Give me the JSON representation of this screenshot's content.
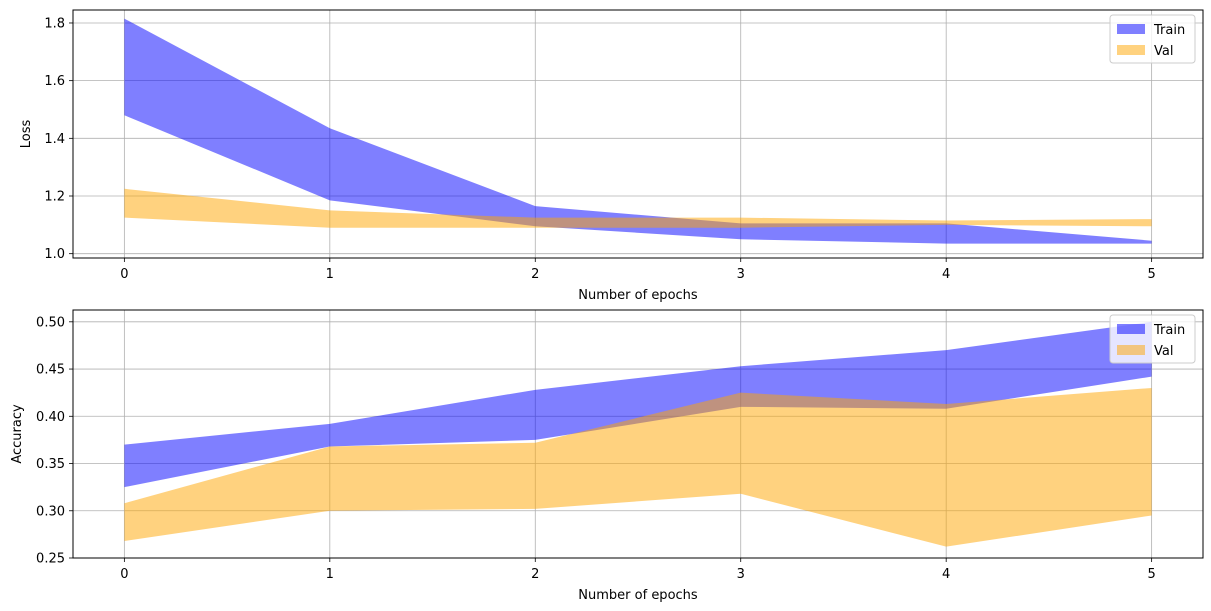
{
  "chart_data": [
    {
      "type": "area",
      "xlabel": "Number of epochs",
      "ylabel": "Loss",
      "x": [
        0,
        1,
        2,
        3,
        4,
        5
      ],
      "xlim": [
        -0.25,
        5.25
      ],
      "ylim": [
        0.985,
        1.845
      ],
      "yticks": [
        1.0,
        1.2,
        1.4,
        1.6,
        1.8
      ],
      "ytick_labels": [
        "1.0",
        "1.2",
        "1.4",
        "1.6",
        "1.8"
      ],
      "xtick_labels": [
        "0",
        "1",
        "2",
        "3",
        "4",
        "5"
      ],
      "grid": true,
      "legend_position": "top-right",
      "series": [
        {
          "name": "Train",
          "color": "#0000ff",
          "alpha": 0.5,
          "upper": [
            1.815,
            1.435,
            1.165,
            1.105,
            1.105,
            1.045
          ],
          "lower": [
            1.48,
            1.185,
            1.095,
            1.05,
            1.035,
            1.035
          ]
        },
        {
          "name": "Val",
          "color": "#ffa500",
          "alpha": 0.5,
          "upper": [
            1.225,
            1.15,
            1.125,
            1.125,
            1.115,
            1.12
          ],
          "lower": [
            1.125,
            1.09,
            1.09,
            1.09,
            1.1,
            1.095
          ]
        }
      ]
    },
    {
      "type": "area",
      "xlabel": "Number of epochs",
      "ylabel": "Accuracy",
      "x": [
        0,
        1,
        2,
        3,
        4,
        5
      ],
      "xlim": [
        -0.25,
        5.25
      ],
      "ylim": [
        0.25,
        0.5125
      ],
      "yticks": [
        0.25,
        0.3,
        0.35,
        0.4,
        0.45,
        0.5
      ],
      "ytick_labels": [
        "0.25",
        "0.30",
        "0.35",
        "0.40",
        "0.45",
        "0.50"
      ],
      "xtick_labels": [
        "0",
        "1",
        "2",
        "3",
        "4",
        "5"
      ],
      "grid": true,
      "legend_position": "top-right",
      "series": [
        {
          "name": "Train",
          "color": "#0000ff",
          "alpha": 0.5,
          "upper": [
            0.37,
            0.392,
            0.428,
            0.453,
            0.47,
            0.5
          ],
          "lower": [
            0.325,
            0.368,
            0.375,
            0.41,
            0.408,
            0.442
          ]
        },
        {
          "name": "Val",
          "color": "#ffa500",
          "alpha": 0.5,
          "upper": [
            0.308,
            0.368,
            0.372,
            0.425,
            0.413,
            0.43
          ],
          "lower": [
            0.268,
            0.3,
            0.302,
            0.318,
            0.262,
            0.295
          ]
        }
      ]
    }
  ]
}
